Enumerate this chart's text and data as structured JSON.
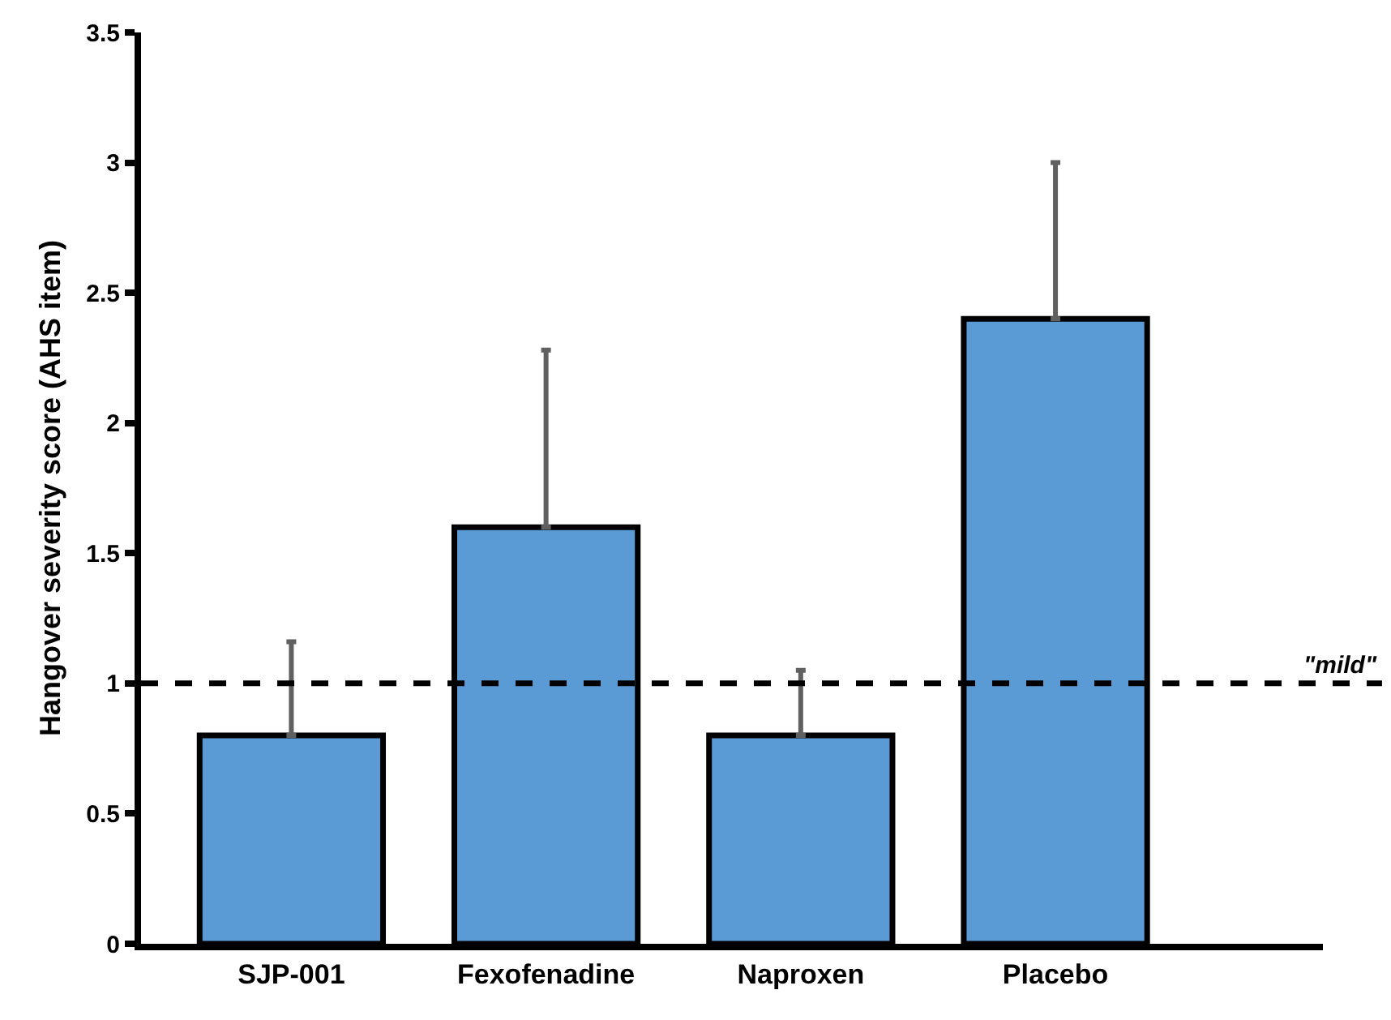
{
  "chart_data": {
    "type": "bar",
    "ylabel": "Hangover severity score (AHS item)",
    "categories": [
      "SJP-001",
      "Fexofenadine",
      "Naproxen",
      "Placebo"
    ],
    "values": [
      0.8,
      1.6,
      0.8,
      2.4
    ],
    "errors": [
      [
        0.8,
        1.16
      ],
      [
        1.6,
        2.28
      ],
      [
        0.8,
        1.05
      ],
      [
        2.4,
        3.0
      ]
    ],
    "color": "#5b9bd5",
    "ylim": [
      0,
      3.5
    ],
    "yticks": [
      0,
      0.5,
      1,
      1.5,
      2,
      2.5,
      3,
      3.5
    ],
    "grid": false,
    "ref_lines": [
      {
        "axis": "y",
        "value": 1,
        "label": "\"mild\"",
        "color": "#000000",
        "line_style": "dashed"
      }
    ]
  }
}
